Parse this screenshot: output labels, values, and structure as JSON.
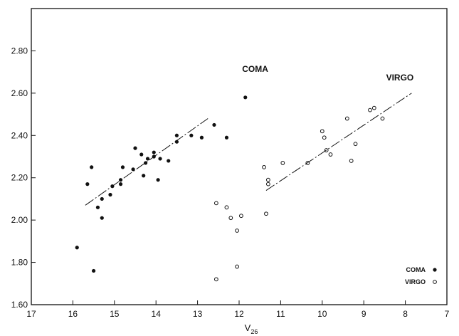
{
  "chart_data": {
    "type": "scatter",
    "title": "",
    "xlabel": "V",
    "xlabel_sub": "26",
    "ylabel": "",
    "xlim": [
      17,
      7
    ],
    "ylim": [
      1.6,
      3.0
    ],
    "x_reversed": true,
    "x_ticks": [
      17,
      16,
      15,
      14,
      13,
      12,
      11,
      10,
      9,
      8,
      7
    ],
    "y_ticks": [
      "1.60",
      "1.80",
      "2.00",
      "2.20",
      "2.40",
      "2.60",
      "2.80"
    ],
    "y_tick_values": [
      1.6,
      1.8,
      2.0,
      2.2,
      2.4,
      2.6,
      2.8
    ],
    "grid": false,
    "legend_position": "bottom-right",
    "legend": [
      {
        "name": "COMA",
        "marker": "filled"
      },
      {
        "name": "VIRGO",
        "marker": "open"
      }
    ],
    "colors": {
      "ink": "#111111",
      "background": "#ffffff"
    },
    "annotations": [
      {
        "text": "COMA",
        "x": 11.3,
        "y": 2.7
      },
      {
        "text": "VIRGO",
        "x": 7.8,
        "y": 2.66
      }
    ],
    "series": [
      {
        "name": "COMA",
        "marker": "filled",
        "points": [
          [
            15.9,
            1.87
          ],
          [
            15.65,
            2.17
          ],
          [
            15.55,
            2.25
          ],
          [
            15.5,
            1.76
          ],
          [
            15.4,
            2.06
          ],
          [
            15.3,
            2.01
          ],
          [
            15.3,
            2.1
          ],
          [
            15.1,
            2.12
          ],
          [
            15.05,
            2.16
          ],
          [
            14.85,
            2.17
          ],
          [
            14.85,
            2.19
          ],
          [
            14.8,
            2.25
          ],
          [
            14.55,
            2.24
          ],
          [
            14.5,
            2.34
          ],
          [
            14.35,
            2.31
          ],
          [
            14.3,
            2.21
          ],
          [
            14.25,
            2.27
          ],
          [
            14.2,
            2.29
          ],
          [
            14.05,
            2.3
          ],
          [
            14.05,
            2.32
          ],
          [
            13.95,
            2.19
          ],
          [
            13.9,
            2.29
          ],
          [
            13.7,
            2.28
          ],
          [
            13.5,
            2.37
          ],
          [
            13.5,
            2.4
          ],
          [
            13.15,
            2.4
          ],
          [
            12.9,
            2.39
          ],
          [
            12.6,
            2.45
          ],
          [
            12.3,
            2.39
          ],
          [
            11.85,
            2.58
          ]
        ],
        "fit": [
          [
            15.7,
            2.07
          ],
          [
            12.75,
            2.48
          ]
        ]
      },
      {
        "name": "VIRGO",
        "marker": "open",
        "points": [
          [
            12.55,
            2.08
          ],
          [
            12.55,
            1.72
          ],
          [
            12.3,
            2.06
          ],
          [
            12.2,
            2.01
          ],
          [
            12.05,
            1.95
          ],
          [
            12.05,
            1.78
          ],
          [
            11.95,
            2.02
          ],
          [
            11.4,
            2.25
          ],
          [
            11.35,
            2.03
          ],
          [
            11.3,
            2.19
          ],
          [
            11.3,
            2.17
          ],
          [
            10.95,
            2.27
          ],
          [
            10.35,
            2.27
          ],
          [
            10.0,
            2.42
          ],
          [
            9.95,
            2.39
          ],
          [
            9.9,
            2.33
          ],
          [
            9.8,
            2.31
          ],
          [
            9.4,
            2.48
          ],
          [
            9.3,
            2.28
          ],
          [
            9.2,
            2.36
          ],
          [
            8.85,
            2.52
          ],
          [
            8.75,
            2.53
          ],
          [
            8.55,
            2.48
          ]
        ],
        "fit": [
          [
            11.35,
            2.14
          ],
          [
            7.85,
            2.6
          ]
        ]
      }
    ]
  }
}
